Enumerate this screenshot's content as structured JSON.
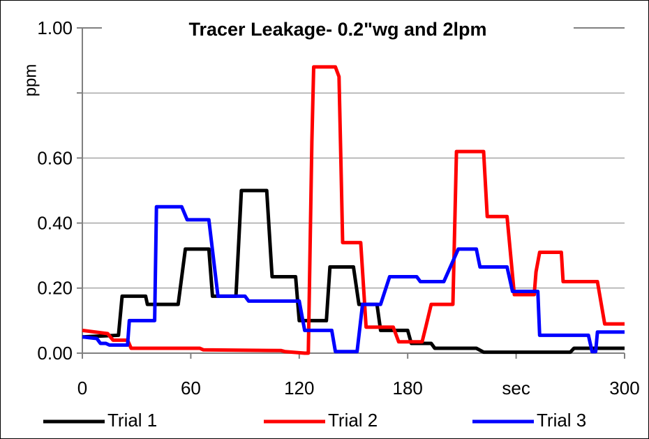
{
  "chart_data": {
    "type": "line",
    "title": "Tracer Leakage- 0.2\"wg and 2lpm",
    "y_label": "ppm",
    "xlim": [
      0,
      300
    ],
    "xticks": [
      0,
      60,
      120,
      180,
      {
        "value": 240,
        "label": "sec"
      },
      300
    ],
    "ylim": [
      0,
      1
    ],
    "yticks": [
      {
        "value": 0,
        "label": "0.00"
      },
      {
        "value": 0.2,
        "label": "0.20"
      },
      {
        "value": 0.4,
        "label": "0.40"
      },
      {
        "value": 0.6,
        "label": "0.60"
      },
      {
        "value": 0.8
      },
      {
        "value": 1,
        "label": "1.00"
      }
    ],
    "grid": true,
    "legend": "bottom",
    "series": [
      {
        "name": "Trial 1",
        "color": "#000000",
        "x": [
          0,
          20,
          22,
          35,
          36,
          53,
          57,
          70,
          72,
          85,
          88,
          102,
          105,
          118,
          120,
          135,
          137,
          150,
          153,
          163,
          165,
          180,
          182,
          193,
          195,
          218,
          222,
          270,
          272,
          300
        ],
        "values": [
          0.05,
          0.055,
          0.175,
          0.175,
          0.15,
          0.15,
          0.32,
          0.32,
          0.175,
          0.175,
          0.5,
          0.5,
          0.235,
          0.235,
          0.1,
          0.1,
          0.265,
          0.265,
          0.15,
          0.15,
          0.07,
          0.07,
          0.03,
          0.03,
          0.015,
          0.015,
          0.003,
          0.003,
          0.015,
          0.015
        ]
      },
      {
        "name": "Trial 2",
        "color": "#ff0000",
        "x": [
          0,
          14,
          17,
          25,
          27,
          65,
          67,
          110,
          112,
          123,
          125,
          127,
          128,
          140,
          142,
          143,
          144,
          154,
          157,
          172,
          175,
          188,
          190,
          193,
          205,
          207,
          222,
          224,
          235,
          239,
          250,
          251,
          253,
          265,
          266,
          285,
          289,
          300
        ],
        "values": [
          0.07,
          0.06,
          0.04,
          0.04,
          0.015,
          0.015,
          0.01,
          0.008,
          0.005,
          0.0,
          0.0,
          0.65,
          0.88,
          0.88,
          0.85,
          0.6,
          0.34,
          0.34,
          0.08,
          0.08,
          0.035,
          0.035,
          0.08,
          0.15,
          0.15,
          0.62,
          0.62,
          0.42,
          0.42,
          0.18,
          0.18,
          0.25,
          0.31,
          0.31,
          0.22,
          0.22,
          0.09,
          0.09
        ]
      },
      {
        "name": "Trial 3",
        "color": "#0000ff",
        "x": [
          0,
          8,
          10,
          13,
          15,
          25,
          26,
          40,
          41,
          55,
          58,
          70,
          75,
          90,
          92,
          120,
          123,
          138,
          140,
          152,
          155,
          165,
          170,
          185,
          187,
          200,
          208,
          218,
          220,
          235,
          238,
          252,
          253,
          280,
          282,
          284,
          285,
          300
        ],
        "values": [
          0.05,
          0.045,
          0.03,
          0.03,
          0.025,
          0.025,
          0.1,
          0.1,
          0.45,
          0.45,
          0.41,
          0.41,
          0.175,
          0.175,
          0.16,
          0.16,
          0.07,
          0.07,
          0.005,
          0.005,
          0.15,
          0.15,
          0.235,
          0.235,
          0.22,
          0.22,
          0.32,
          0.32,
          0.265,
          0.265,
          0.19,
          0.19,
          0.055,
          0.055,
          0.005,
          0.005,
          0.065,
          0.065
        ]
      }
    ]
  }
}
